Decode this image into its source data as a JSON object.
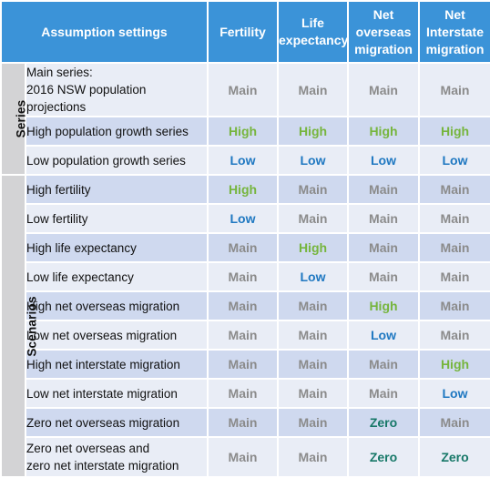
{
  "header": {
    "assumption": "Assumption settings",
    "columns": [
      [
        "Fertility"
      ],
      [
        "Life",
        "expectancy"
      ],
      [
        "Net",
        "overseas",
        "migration"
      ],
      [
        "Net",
        "Interstate",
        "migration"
      ]
    ]
  },
  "groups": [
    {
      "label": "Series",
      "rows": [
        0,
        1,
        2
      ]
    },
    {
      "label": "Scenarios",
      "rows": [
        3,
        4,
        5,
        6,
        7,
        8,
        9,
        10,
        11,
        12
      ]
    }
  ],
  "rows": [
    {
      "lines": [
        "Main series:",
        "2016 NSW population projections"
      ],
      "values": [
        "Main",
        "Main",
        "Main",
        "Main"
      ]
    },
    {
      "lines": [
        "High population growth series"
      ],
      "values": [
        "High",
        "High",
        "High",
        "High"
      ]
    },
    {
      "lines": [
        "Low population growth series"
      ],
      "values": [
        "Low",
        "Low",
        "Low",
        "Low"
      ]
    },
    {
      "lines": [
        "High fertility"
      ],
      "values": [
        "High",
        "Main",
        "Main",
        "Main"
      ]
    },
    {
      "lines": [
        "Low fertility"
      ],
      "values": [
        "Low",
        "Main",
        "Main",
        "Main"
      ]
    },
    {
      "lines": [
        "High life expectancy"
      ],
      "values": [
        "Main",
        "High",
        "Main",
        "Main"
      ]
    },
    {
      "lines": [
        "Low life expectancy"
      ],
      "values": [
        "Main",
        "Low",
        "Main",
        "Main"
      ]
    },
    {
      "lines": [
        "High net overseas migration"
      ],
      "values": [
        "Main",
        "Main",
        "High",
        "Main"
      ]
    },
    {
      "lines": [
        "Low net overseas migration"
      ],
      "values": [
        "Main",
        "Main",
        "Low",
        "Main"
      ]
    },
    {
      "lines": [
        "High net interstate migration"
      ],
      "values": [
        "Main",
        "Main",
        "Main",
        "High"
      ]
    },
    {
      "lines": [
        "Low net interstate migration"
      ],
      "values": [
        "Main",
        "Main",
        "Main",
        "Low"
      ]
    },
    {
      "lines": [
        "Zero net overseas migration"
      ],
      "values": [
        "Main",
        "Main",
        "Zero",
        "Main"
      ]
    },
    {
      "lines": [
        "Zero net overseas and",
        "zero net interstate migration"
      ],
      "values": [
        "Main",
        "Main",
        "Zero",
        "Zero"
      ]
    }
  ],
  "colors": {
    "Main": "#8b8b8b",
    "High": "#76b53d",
    "Low": "#1f78c1",
    "Zero": "#177868",
    "header_bg": "#3b93d8",
    "row_light": "#e9edf6",
    "row_dark": "#cfd9ef",
    "group_bg": "#d3d3d5"
  }
}
